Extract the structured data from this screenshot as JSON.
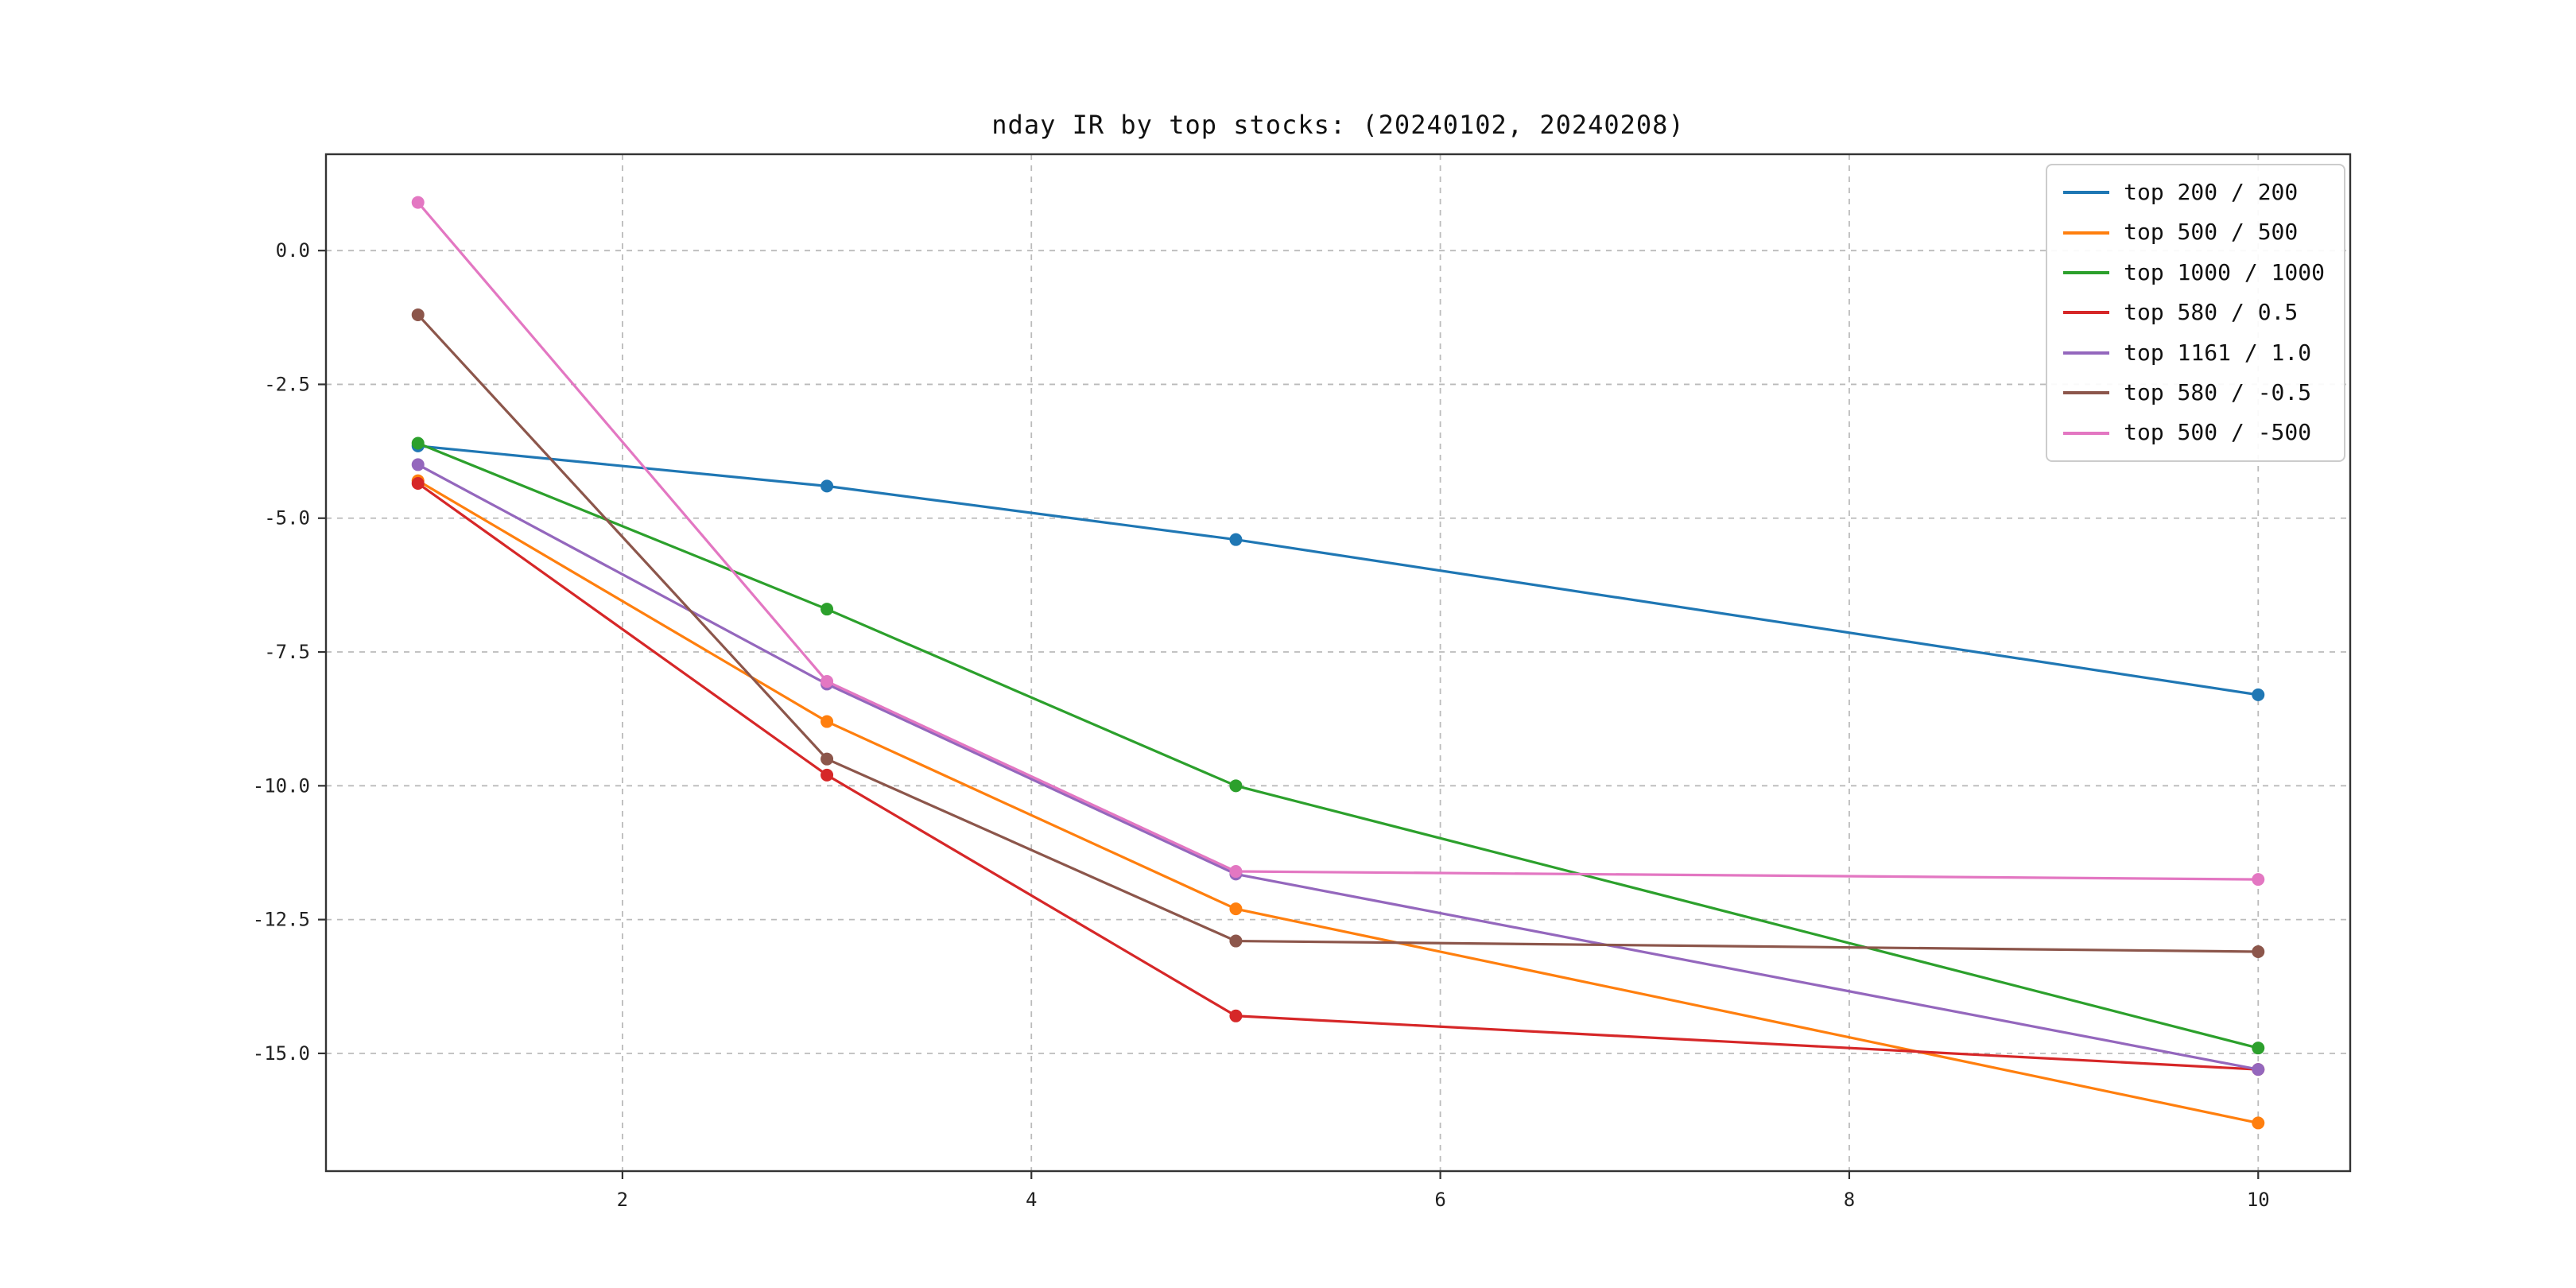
{
  "chart_data": {
    "type": "line",
    "title": "nday IR by top stocks: (20240102, 20240208)",
    "xlabel": "",
    "ylabel": "",
    "x": [
      1,
      3,
      5,
      10
    ],
    "series": [
      {
        "name": "top 200 / 200",
        "color": "#1f77b4",
        "values": [
          -3.65,
          -4.4,
          -5.4,
          -8.3
        ]
      },
      {
        "name": "top 500 / 500",
        "color": "#ff7f0e",
        "values": [
          -4.3,
          -8.8,
          -12.3,
          -16.3
        ]
      },
      {
        "name": "top 1000 / 1000",
        "color": "#2ca02c",
        "values": [
          -3.6,
          -6.7,
          -10.0,
          -14.9
        ]
      },
      {
        "name": "top 580 / 0.5",
        "color": "#d62728",
        "values": [
          -4.35,
          -9.8,
          -14.3,
          -15.3
        ]
      },
      {
        "name": "top 1161 / 1.0",
        "color": "#9467bd",
        "values": [
          -4.0,
          -8.1,
          -11.65,
          -15.3
        ]
      },
      {
        "name": "top 580 / -0.5",
        "color": "#8c564b",
        "values": [
          -1.2,
          -9.5,
          -12.9,
          -13.1
        ]
      },
      {
        "name": "top 500 / -500",
        "color": "#e377c2",
        "values": [
          0.9,
          -8.05,
          -11.6,
          -11.75
        ]
      }
    ],
    "xticks": [
      2,
      4,
      6,
      8,
      10
    ],
    "xtick_labels": [
      "2",
      "4",
      "6",
      "8",
      "10"
    ],
    "yticks": [
      0.0,
      -2.5,
      -5.0,
      -7.5,
      -10.0,
      -12.5,
      -15.0
    ],
    "ytick_labels": [
      "0.0",
      "-2.5",
      "-5.0",
      "-7.5",
      "-10.0",
      "-12.5",
      "-15.0"
    ],
    "xlim": [
      0.55,
      10.45
    ],
    "ylim": [
      -17.2,
      1.8
    ],
    "grid": true,
    "grid_style": "dashed",
    "legend_position": "upper right",
    "marker": "o",
    "colors": {
      "frame": "#333333",
      "grid": "#bbbbbb",
      "tick_label": "#222222",
      "background": "#ffffff"
    }
  }
}
